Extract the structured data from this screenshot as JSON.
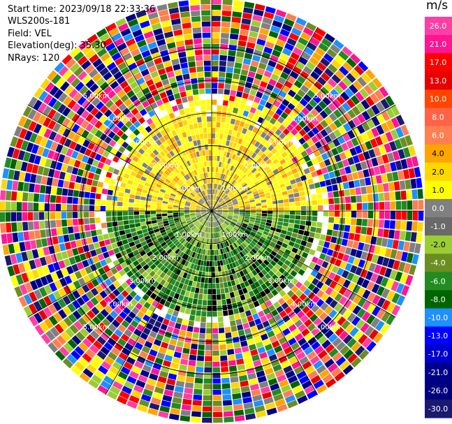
{
  "header": {
    "start_time": "Start time: 2023/09/18 22:33:36",
    "site": "WLS200s-181",
    "field": "Field: VEL",
    "elevation": "Elevation(deg): 35.30",
    "nrays": "NRays: 120"
  },
  "colorbar": {
    "unit": "m/s",
    "ticks": [
      "26.0",
      "21.0",
      "17.0",
      "13.0",
      "10.0",
      "8.0",
      "6.0",
      "4.0",
      "2.0",
      "1.0",
      "0.0",
      "-1.0",
      "-2.0",
      "-4.0",
      "-6.0",
      "-8.0",
      "-10.0",
      "-13.0",
      "-17.0",
      "-21.0",
      "-26.0",
      "-30.0"
    ],
    "colors": [
      "#ff3ea5",
      "#ff1493",
      "#ff0000",
      "#e60000",
      "#ff4500",
      "#ff6347",
      "#ff7f50",
      "#ffa500",
      "#ffd700",
      "#ffff00",
      "#808080",
      "#696969",
      "#9acd32",
      "#6b8e23",
      "#228b22",
      "#006400",
      "#1e90ff",
      "#0000ff",
      "#0000cd",
      "#00008b",
      "#000080",
      "#191970"
    ]
  },
  "chart_data": {
    "type": "heatmap",
    "title": "",
    "range_rings_km": [
      1.0,
      2.0,
      3.0,
      4.0,
      5.0
    ],
    "ring_labels": {
      "1": "1.00km",
      "2": "2.00km",
      "3": "3.00km",
      "4": "4.00km",
      "5": "5.00km"
    },
    "field": "VEL",
    "elevation_deg": 35.3,
    "n_rays": 120,
    "max_range_km": 6.5,
    "pattern": {
      "north_near_field": "positive velocity ~2 to 4 m/s (yellow/orange) within about 3 km",
      "south_near_field": "negative velocity ~-2 to -6 m/s (green) within about 3 km",
      "far_field": "noise of mixed colors beyond about 3.5 km"
    }
  }
}
